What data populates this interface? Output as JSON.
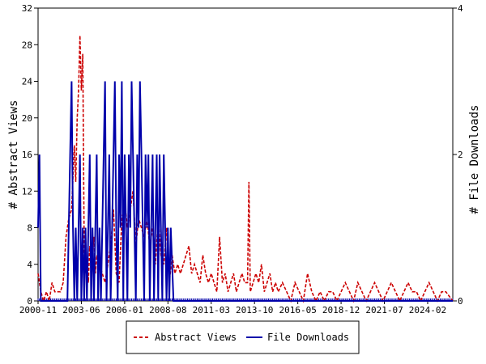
{
  "chart_data": {
    "type": "line",
    "title": "",
    "ylabel": "# Abstract Views",
    "y2label": "# File Downloads",
    "ylim": [
      0,
      32
    ],
    "y2lim": [
      0,
      4
    ],
    "yticks": [
      "0",
      "4",
      "8",
      "12",
      "16",
      "20",
      "24",
      "28",
      "32"
    ],
    "y2ticks": [
      "0",
      "2",
      "4"
    ],
    "xticks": [
      "2000-11",
      "2003-06",
      "2006-01",
      "2008-08",
      "2011-03",
      "2013-10",
      "2016-05",
      "2018-12",
      "2021-07",
      "2024-02"
    ],
    "x_start": "2000-11",
    "x_end": "2025-08",
    "legend_position": "bottom",
    "colors": {
      "views": "#cc0000",
      "downloads": "#0000aa"
    },
    "series": [
      {
        "name": "Abstract Views",
        "axis": "left",
        "style": "dashed",
        "x": [
          "2000-11",
          "2001-01",
          "2001-03",
          "2001-05",
          "2001-07",
          "2001-09",
          "2001-11",
          "2002-01",
          "2002-03",
          "2002-05",
          "2002-07",
          "2002-09",
          "2002-11",
          "2003-01",
          "2003-02",
          "2003-03",
          "2003-04",
          "2003-05",
          "2003-06",
          "2003-07",
          "2003-08",
          "2003-09",
          "2003-10",
          "2003-11",
          "2003-12",
          "2004-01",
          "2004-02",
          "2004-03",
          "2004-04",
          "2004-05",
          "2004-07",
          "2004-09",
          "2004-11",
          "2005-01",
          "2005-03",
          "2005-05",
          "2005-07",
          "2005-09",
          "2005-11",
          "2006-01",
          "2006-03",
          "2006-05",
          "2006-07",
          "2006-09",
          "2006-11",
          "2007-01",
          "2007-03",
          "2007-05",
          "2007-07",
          "2007-09",
          "2007-11",
          "2008-01",
          "2008-03",
          "2008-05",
          "2008-07",
          "2008-09",
          "2008-11",
          "2009-01",
          "2009-03",
          "2009-05",
          "2009-07",
          "2009-09",
          "2009-11",
          "2010-01",
          "2010-03",
          "2010-05",
          "2010-07",
          "2010-09",
          "2010-11",
          "2011-01",
          "2011-03",
          "2011-05",
          "2011-07",
          "2011-09",
          "2011-11",
          "2012-01",
          "2012-03",
          "2012-05",
          "2012-07",
          "2012-09",
          "2012-11",
          "2013-01",
          "2013-03",
          "2013-05",
          "2013-06",
          "2013-07",
          "2013-09",
          "2013-11",
          "2014-01",
          "2014-03",
          "2014-05",
          "2014-07",
          "2014-09",
          "2014-11",
          "2015-01",
          "2015-03",
          "2015-06",
          "2015-09",
          "2015-12",
          "2016-03",
          "2016-06",
          "2016-09",
          "2016-12",
          "2017-03",
          "2017-06",
          "2017-09",
          "2017-12",
          "2018-03",
          "2018-06",
          "2018-09",
          "2018-12",
          "2019-03",
          "2019-06",
          "2019-09",
          "2019-12",
          "2020-03",
          "2020-06",
          "2020-09",
          "2020-12",
          "2021-03",
          "2021-06",
          "2021-09",
          "2021-12",
          "2022-03",
          "2022-06",
          "2022-09",
          "2022-12",
          "2023-03",
          "2023-06",
          "2023-09",
          "2023-12",
          "2024-03",
          "2024-06",
          "2024-09",
          "2024-12",
          "2025-03",
          "2025-08"
        ],
        "values": [
          3,
          1,
          0,
          1,
          0,
          2,
          1,
          1,
          1,
          2,
          7,
          9,
          10,
          17,
          13,
          20,
          23,
          29,
          23,
          27,
          6,
          3,
          4,
          2,
          6,
          4,
          5,
          7,
          3,
          5,
          4,
          3,
          2,
          4,
          6,
          10,
          3,
          2,
          9,
          11,
          8,
          10,
          12,
          6,
          9,
          8,
          7,
          9,
          6,
          8,
          4,
          9,
          5,
          4,
          8,
          2,
          5,
          3,
          4,
          3,
          4,
          5,
          6,
          3,
          4,
          3,
          2,
          5,
          3,
          2,
          3,
          2,
          1,
          7,
          2,
          3,
          1,
          2,
          3,
          1,
          2,
          3,
          2,
          2,
          13,
          1,
          2,
          3,
          2,
          4,
          1,
          2,
          3,
          1,
          2,
          1,
          2,
          1,
          0,
          2,
          1,
          0,
          3,
          1,
          0,
          1,
          0,
          1,
          1,
          0,
          1,
          2,
          1,
          0,
          2,
          1,
          0,
          1,
          2,
          1,
          0,
          1,
          2,
          1,
          0,
          1,
          2,
          1,
          1,
          0,
          1,
          2,
          1,
          0,
          1,
          1,
          0
        ]
      },
      {
        "name": "File Downloads",
        "axis": "right",
        "style": "solid",
        "x": [
          "2000-11",
          "2000-12",
          "2001-01",
          "2001-03",
          "2001-06",
          "2001-09",
          "2001-12",
          "2002-03",
          "2002-06",
          "2002-08",
          "2002-09",
          "2002-10",
          "2002-11",
          "2002-12",
          "2003-01",
          "2003-02",
          "2003-03",
          "2003-04",
          "2003-05",
          "2003-06",
          "2003-07",
          "2003-08",
          "2003-09",
          "2003-10",
          "2003-11",
          "2003-12",
          "2004-01",
          "2004-02",
          "2004-03",
          "2004-04",
          "2004-05",
          "2004-06",
          "2004-07",
          "2004-08",
          "2004-09",
          "2004-10",
          "2004-11",
          "2004-12",
          "2005-01",
          "2005-02",
          "2005-03",
          "2005-04",
          "2005-05",
          "2005-06",
          "2005-07",
          "2005-08",
          "2005-09",
          "2005-10",
          "2005-11",
          "2005-12",
          "2006-01",
          "2006-02",
          "2006-03",
          "2006-04",
          "2006-05",
          "2006-06",
          "2006-07",
          "2006-08",
          "2006-09",
          "2006-10",
          "2006-11",
          "2006-12",
          "2007-01",
          "2007-02",
          "2007-03",
          "2007-04",
          "2007-05",
          "2007-06",
          "2007-07",
          "2007-08",
          "2007-09",
          "2007-10",
          "2007-11",
          "2007-12",
          "2008-01",
          "2008-02",
          "2008-03",
          "2008-04",
          "2008-05",
          "2008-06",
          "2008-07",
          "2008-08",
          "2008-09",
          "2008-10",
          "2008-12",
          "2010-01",
          "2012-01",
          "2014-01",
          "2016-01",
          "2018-01",
          "2020-01",
          "2022-01",
          "2024-01",
          "2025-08"
        ],
        "values": [
          1,
          2,
          0,
          0,
          0,
          0,
          0,
          0,
          0,
          0,
          1,
          2,
          3,
          1,
          0,
          1,
          0,
          1,
          2,
          0,
          1,
          0,
          1,
          0,
          1,
          2,
          0,
          1,
          0,
          1,
          2,
          0,
          1,
          0,
          1,
          2,
          3,
          0,
          1,
          2,
          0,
          1,
          2,
          3,
          1,
          0,
          2,
          1,
          3,
          0,
          2,
          1,
          0,
          2,
          1,
          3,
          2,
          1,
          0,
          2,
          1,
          3,
          2,
          1,
          0,
          2,
          1,
          2,
          0,
          1,
          2,
          0,
          1,
          2,
          0,
          2,
          1,
          0,
          2,
          1,
          0,
          1,
          0,
          1,
          0,
          0,
          0,
          0,
          0,
          0,
          0,
          0,
          0,
          0
        ]
      }
    ]
  }
}
